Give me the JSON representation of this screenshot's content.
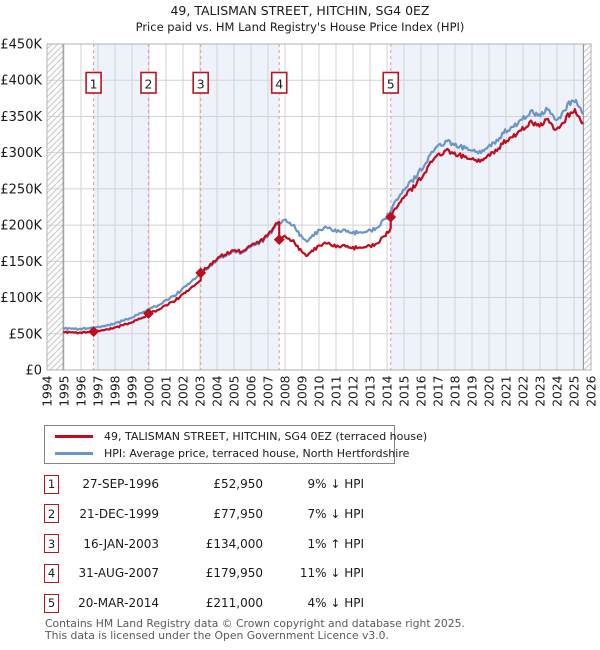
{
  "header": {
    "title_line1": "49, TALISMAN STREET, HITCHIN, SG4 0EZ",
    "title_line2": "Price paid vs. HM Land Registry's House Price Index (HPI)"
  },
  "colors": {
    "property_line": "#c00c1c",
    "hpi_line": "#6d94c7",
    "sale_dash": "#f2a0a0",
    "band": "#edf2fb",
    "grid": "#d3d3d3",
    "plot_border": "#b0b0b0",
    "hatch": "#c6c6c6",
    "hatch_edge": "#8a8a8a",
    "badge_border": "#bb1420",
    "axis_text": "#1a1a1a",
    "muted_text": "#5a5a5a"
  },
  "chart_data": {
    "type": "line",
    "x_axis": {
      "min": 1994,
      "max": 2026,
      "tick_years": [
        1994,
        1995,
        1996,
        1997,
        1998,
        1999,
        2000,
        2001,
        2002,
        2003,
        2004,
        2005,
        2006,
        2007,
        2008,
        2009,
        2010,
        2011,
        2012,
        2013,
        2014,
        2015,
        2016,
        2017,
        2018,
        2019,
        2020,
        2021,
        2022,
        2023,
        2024,
        2025,
        2026
      ]
    },
    "y_axis": {
      "min": 0,
      "max": 450,
      "tick_step": 50,
      "tick_labels": [
        "£0",
        "£50K",
        "£100K",
        "£150K",
        "£200K",
        "£250K",
        "£300K",
        "£350K",
        "£400K",
        "£450K"
      ]
    },
    "data_start_year": 1994.95,
    "data_end_year": 2025.55,
    "series": [
      {
        "name": "49, TALISMAN STREET, HITCHIN, SG4 0EZ (terraced house)",
        "role": "property",
        "derived": "hpi_scaled_between_sales",
        "segments": [
          {
            "from": 1994.95,
            "to": 1996.74,
            "ratio": 0.91
          },
          {
            "from": 1996.74,
            "to": 1999.97,
            "ratio": 0.91
          },
          {
            "from": 1999.97,
            "to": 2003.04,
            "ratio": 0.93
          },
          {
            "from": 2003.04,
            "to": 2007.66,
            "ratio": 1.01
          },
          {
            "from": 2007.66,
            "to": 2014.22,
            "ratio": 0.89
          },
          {
            "from": 2014.22,
            "to": 2025.55,
            "ratio": 0.96
          }
        ]
      },
      {
        "name": "HPI: Average price, terraced house, North Hertfordshire",
        "role": "hpi",
        "points_year_gbp_k": [
          [
            1994.95,
            57.5
          ],
          [
            1995.4,
            57
          ],
          [
            1995.9,
            56.6
          ],
          [
            1996.3,
            57
          ],
          [
            1996.74,
            58.2
          ],
          [
            1997.1,
            59.5
          ],
          [
            1997.5,
            61
          ],
          [
            1998,
            64
          ],
          [
            1998.5,
            68
          ],
          [
            1999,
            72.5
          ],
          [
            1999.5,
            77.5
          ],
          [
            1999.97,
            83.8
          ],
          [
            2000.4,
            88
          ],
          [
            2000.9,
            94
          ],
          [
            2001.4,
            101
          ],
          [
            2001.9,
            110
          ],
          [
            2002.4,
            121
          ],
          [
            2003.04,
            132.7
          ],
          [
            2003.5,
            142
          ],
          [
            2004,
            152
          ],
          [
            2004.5,
            159
          ],
          [
            2005,
            163
          ],
          [
            2005.5,
            162
          ],
          [
            2006,
            170
          ],
          [
            2006.5,
            175
          ],
          [
            2007,
            184
          ],
          [
            2007.4,
            197
          ],
          [
            2007.66,
            202.2
          ],
          [
            2008,
            206
          ],
          [
            2008.5,
            199
          ],
          [
            2009,
            183
          ],
          [
            2009.25,
            177
          ],
          [
            2009.6,
            184
          ],
          [
            2010,
            193
          ],
          [
            2010.5,
            197
          ],
          [
            2011,
            191
          ],
          [
            2011.5,
            193
          ],
          [
            2012,
            189
          ],
          [
            2012.5,
            191.5
          ],
          [
            2013,
            192
          ],
          [
            2013.5,
            198
          ],
          [
            2014,
            212
          ],
          [
            2014.22,
            219.8
          ],
          [
            2014.7,
            240
          ],
          [
            2015,
            250
          ],
          [
            2015.5,
            261
          ],
          [
            2016,
            277
          ],
          [
            2016.5,
            295
          ],
          [
            2017,
            308
          ],
          [
            2017.5,
            315
          ],
          [
            2018,
            311
          ],
          [
            2018.5,
            306
          ],
          [
            2019,
            305
          ],
          [
            2019.5,
            301
          ],
          [
            2020,
            309
          ],
          [
            2020.5,
            316
          ],
          [
            2021,
            330
          ],
          [
            2021.5,
            338
          ],
          [
            2022,
            347
          ],
          [
            2022.5,
            357
          ],
          [
            2023,
            352
          ],
          [
            2023.4,
            360
          ],
          [
            2023.8,
            349
          ],
          [
            2024.2,
            347
          ],
          [
            2024.6,
            364
          ],
          [
            2025,
            374
          ],
          [
            2025.3,
            364
          ],
          [
            2025.55,
            356
          ]
        ]
      }
    ],
    "sales": [
      {
        "n": "1",
        "year": 1996.74,
        "date": "27-SEP-1996",
        "price": "£52,950",
        "price_k": 52.95,
        "delta": "9% ↓ HPI"
      },
      {
        "n": "2",
        "year": 1999.97,
        "date": "21-DEC-1999",
        "price": "£77,950",
        "price_k": 77.95,
        "delta": "7% ↓ HPI"
      },
      {
        "n": "3",
        "year": 2003.04,
        "date": "16-JAN-2003",
        "price": "£134,000",
        "price_k": 134.0,
        "delta": "1% ↑ HPI"
      },
      {
        "n": "4",
        "year": 2007.66,
        "date": "31-AUG-2007",
        "price": "£179,950",
        "price_k": 179.95,
        "delta": "11% ↓ HPI"
      },
      {
        "n": "5",
        "year": 2014.22,
        "date": "20-MAR-2014",
        "price": "£211,000",
        "price_k": 211.0,
        "delta": "4% ↓ HPI"
      }
    ],
    "ownership_bands": [
      [
        1996.74,
        1999.97
      ],
      [
        2003.04,
        2007.66
      ],
      [
        2014.22,
        2025.55
      ]
    ]
  },
  "legend": {
    "items": [
      {
        "label": "49, TALISMAN STREET, HITCHIN, SG4 0EZ (terraced house)"
      },
      {
        "label": "HPI: Average price, terraced house, North Hertfordshire"
      }
    ]
  },
  "footer": {
    "line1": "Contains HM Land Registry data © Crown copyright and database right 2025.",
    "line2": "This data is licensed under the Open Government Licence v3.0."
  }
}
